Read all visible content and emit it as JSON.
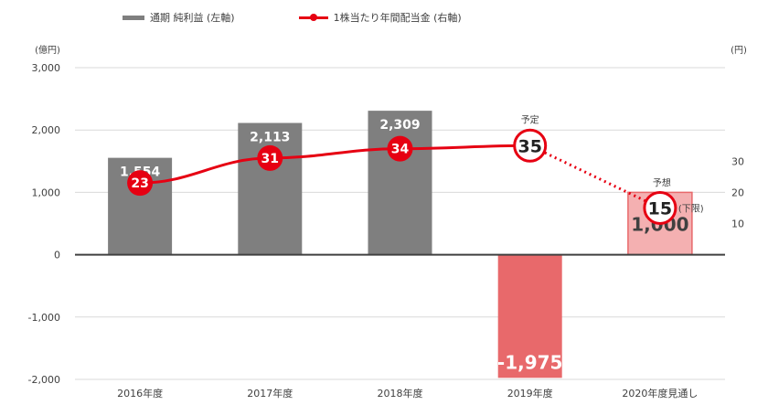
{
  "chart_data": {
    "type": "bar",
    "categories": [
      "2016年度",
      "2017年度",
      "2018年度",
      "2019年度",
      "2020年度見通し"
    ],
    "series": [
      {
        "name": "通期 純利益 (左軸)",
        "type": "bar",
        "axis": "left",
        "values": [
          1554,
          2113,
          2309,
          -1975,
          1000
        ],
        "labels": [
          "1,554",
          "2,113",
          "2,309",
          "-1,975",
          "1,000"
        ],
        "color": "#7f7f7f",
        "highlight_colors": {
          "2019年度": "#e8696b",
          "2020年度見通し": "#f4b0b1"
        }
      },
      {
        "name": "1株当たり年間配当金 (右軸)",
        "type": "line",
        "axis": "right",
        "values": [
          23,
          31,
          34,
          35,
          15
        ],
        "labels": [
          "23",
          "31",
          "34",
          "35",
          "15"
        ],
        "color": "#e60012",
        "dashed_from_index": 3
      }
    ],
    "left_axis": {
      "unit": "(億円)",
      "ylim": [
        -2000,
        3000
      ],
      "ticks": [
        -2000,
        -1000,
        0,
        1000,
        2000,
        3000
      ],
      "tick_labels": [
        "-2,000",
        "-1,000",
        "0",
        "1,000",
        "2,000",
        "3,000"
      ]
    },
    "right_axis": {
      "unit": "(円)",
      "ylim": [
        -40,
        60
      ],
      "ticks": [
        10,
        20,
        30
      ],
      "tick_labels": [
        "10",
        "20",
        "30"
      ]
    },
    "annotations": {
      "yotei": "予定",
      "yosou": "予想",
      "kagen": "(下限)"
    },
    "gridlines": true,
    "legend_position": "top-left"
  }
}
